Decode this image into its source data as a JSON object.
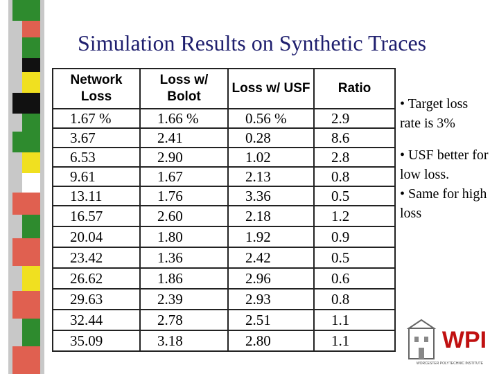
{
  "title": "Simulation Results on Synthetic Traces",
  "table": {
    "header": [
      "Network Loss",
      "Loss w/ Bolot",
      "Loss w/ USF",
      "Ratio"
    ],
    "rows": [
      [
        "1.67 %",
        "1.66 %",
        "0.56 %",
        "2.9"
      ],
      [
        "3.67",
        "2.41",
        "0.28",
        "8.6"
      ],
      [
        "6.53",
        "2.90",
        "1.02",
        "2.8"
      ],
      [
        "9.61",
        "1.67",
        "2.13",
        "0.8"
      ],
      [
        "13.11",
        "1.76",
        "3.36",
        "0.5"
      ],
      [
        "16.57",
        "2.60",
        "2.18",
        "1.2"
      ],
      [
        "20.04",
        "1.80",
        "1.92",
        "0.9"
      ],
      [
        "23.42",
        "1.36",
        "2.42",
        "0.5"
      ],
      [
        "26.62",
        "1.86",
        "2.96",
        "0.6"
      ],
      [
        "29.63",
        "2.39",
        "2.93",
        "0.8"
      ],
      [
        "32.44",
        "2.78",
        "2.51",
        "1.1"
      ],
      [
        "35.09",
        "3.18",
        "2.80",
        "1.1"
      ]
    ]
  },
  "bullets": [
    "• Target loss rate is 3%",
    "• USF better for low loss.",
    "• Same for high loss"
  ],
  "logo": {
    "name": "WPI",
    "subtitle": "WORCESTER POLYTECHNIC INSTITUTE"
  }
}
